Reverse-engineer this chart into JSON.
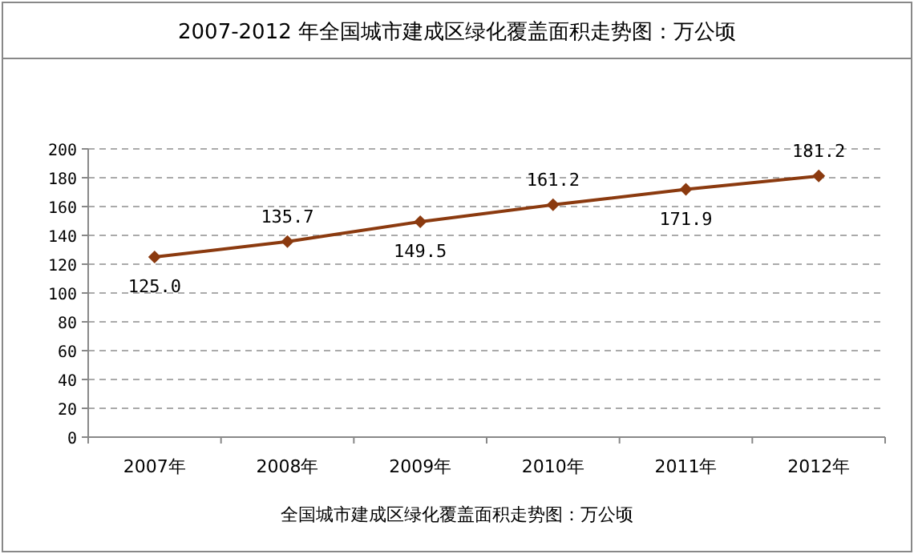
{
  "chart_data": {
    "type": "line",
    "title": "2007-2012 年全国城市建成区绿化覆盖面积走势图：万公顷",
    "xlabel": "全国城市建成区绿化覆盖面积走势图：万公顷",
    "categories": [
      "2007年",
      "2008年",
      "2009年",
      "2010年",
      "2011年",
      "2012年"
    ],
    "series": [
      {
        "color": "#8b3a0f",
        "values": [
          125.0,
          135.7,
          149.5,
          161.2,
          171.9,
          181.2
        ],
        "value_labels": [
          "125.0",
          "135.7",
          "149.5",
          "161.2",
          "171.9",
          "181.2"
        ]
      }
    ],
    "ylim": [
      0,
      200
    ],
    "yticks": [
      0,
      20,
      40,
      60,
      80,
      100,
      120,
      140,
      160,
      180,
      200
    ],
    "grid": "y",
    "marker": "diamond",
    "line_style": "solid"
  }
}
